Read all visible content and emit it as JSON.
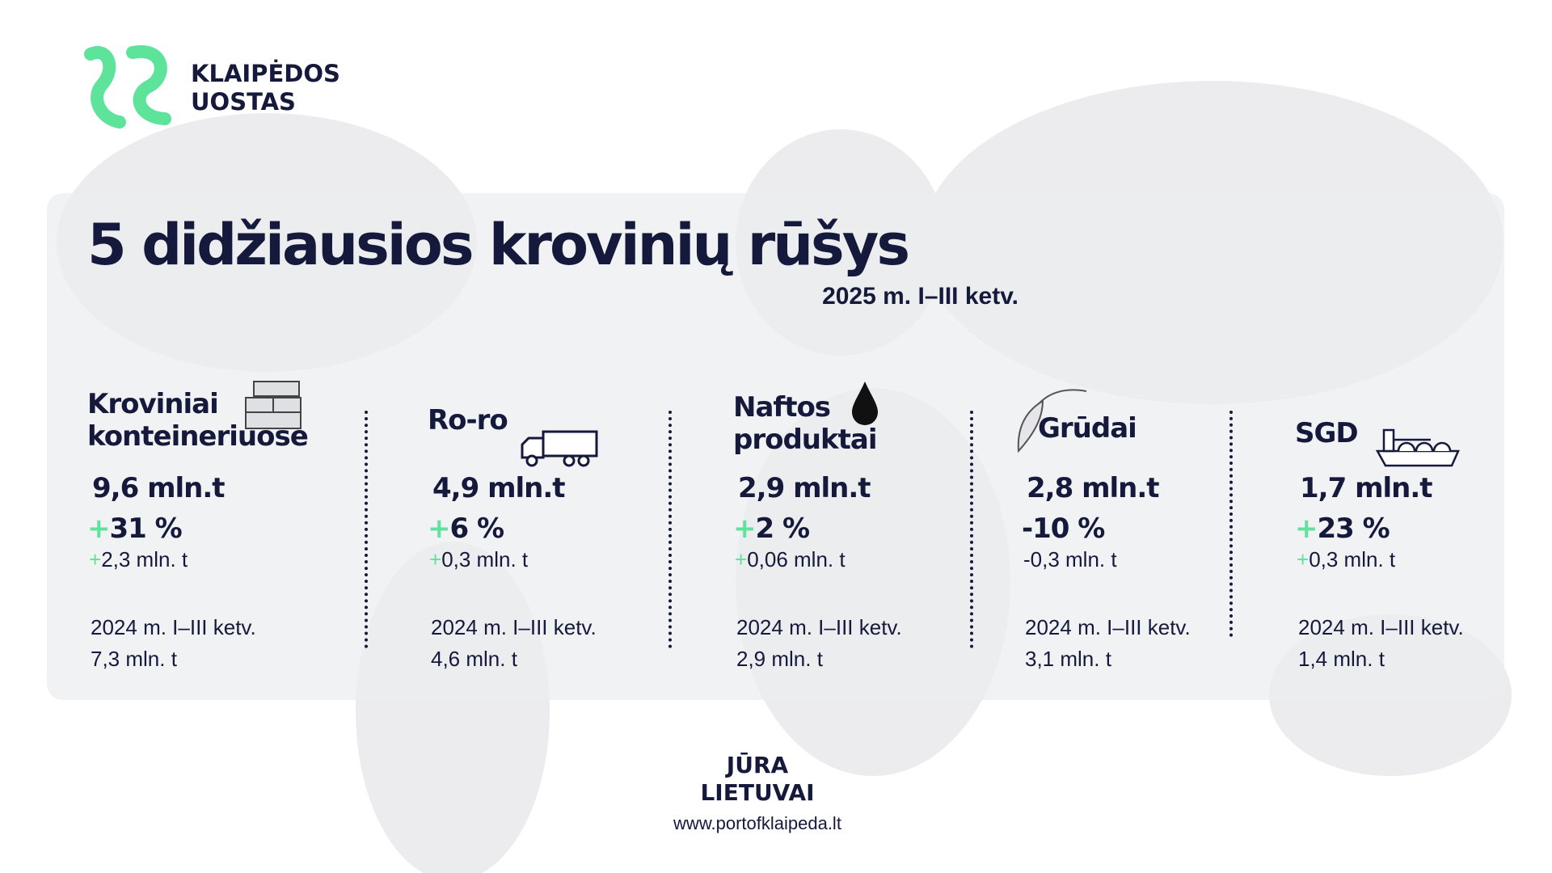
{
  "logo": {
    "line1": "KLAIPĖDOS",
    "line2": "UOSTAS"
  },
  "header": {
    "title": "5 didžiausios krovinių rūšys",
    "subtitle": "2025 m. I–III ketv."
  },
  "cargo": [
    {
      "name_line1": "Kroviniai",
      "name_line2": "konteineriuose",
      "value": "9,6 mln.t",
      "change_sign": "+",
      "change": "31 %",
      "delta_sign": "+",
      "delta": "2,3 mln. t",
      "prev_label": "2024 m. I–III ketv.",
      "prev_value": "7,3 mln. t"
    },
    {
      "name_line1": "Ro-ro",
      "value": "4,9 mln.t",
      "change_sign": "+",
      "change": "6 %",
      "delta_sign": "+",
      "delta": "0,3 mln. t",
      "prev_label": "2024 m. I–III ketv.",
      "prev_value": "4,6 mln. t"
    },
    {
      "name_line1": "Naftos",
      "name_line2": "produktai",
      "value": "2,9 mln.t",
      "change_sign": "+",
      "change": "2 %",
      "delta_sign": "+",
      "delta": "0,06 mln. t",
      "prev_label": "2024 m. I–III ketv.",
      "prev_value": "2,9 mln. t"
    },
    {
      "name_line1": "Grūdai",
      "value": "2,8 mln.t",
      "change": "-10 %",
      "delta": "-0,3 mln. t",
      "prev_label": "2024 m. I–III ketv.",
      "prev_value": "3,1 mln. t"
    },
    {
      "name_line1": "SGD",
      "value": "1,7 mln.t",
      "change_sign": "+",
      "change": "23 %",
      "delta_sign": "+",
      "delta": "0,3 mln. t",
      "prev_label": "2024 m. I–III ketv.",
      "prev_value": "1,4 mln. t"
    }
  ],
  "footer": {
    "brand_line1": "JŪRA",
    "brand_line2": "LIETUVAI",
    "url": "www.portofklaipeda.lt"
  }
}
